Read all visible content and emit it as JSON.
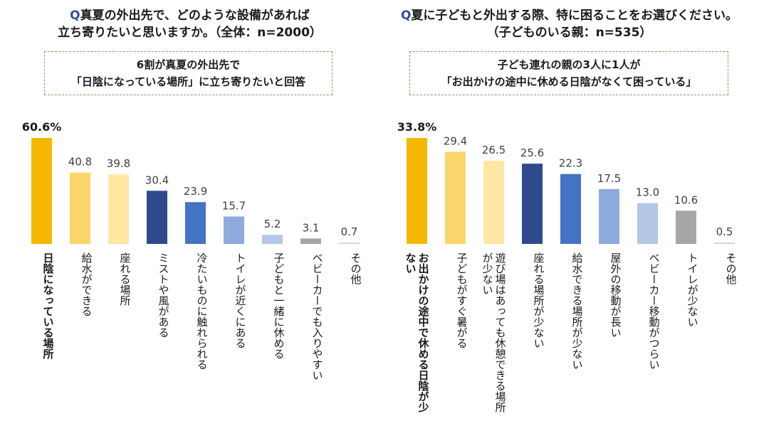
{
  "left": {
    "question_mark": "Q",
    "question_line1": "真夏の外出先で、どのような設備があれば",
    "question_line2": "立ち寄りたいと思いますか。（全体：n=2000）",
    "callout_line1": "6割が真夏の外出先で",
    "callout_line2": "「日陰になっている場所」に立ち寄りたいと回答"
  },
  "right": {
    "question_mark": "Q",
    "question_line1": "夏に子どもと外出する際、特に困ることをお選びください。",
    "question_line2": "（子どものいる親：n=535）",
    "callout_line1": "子ども連れの親の3人に1人が",
    "callout_line2": "「お出かけの途中に休める日陰がなくて困っている」"
  },
  "chart_data": [
    {
      "type": "bar",
      "categories": [
        "日陰になっている場所",
        "給水ができる",
        "座れる場所",
        "ミストや風がある",
        "冷たいものに触れられる",
        "トイレが近くにある",
        "子どもと一緒に休める",
        "ベビーカーでも入りやすい",
        "その他"
      ],
      "values": [
        60.6,
        40.8,
        39.8,
        30.4,
        23.9,
        15.7,
        5.2,
        3.1,
        0.7
      ],
      "value_labels": [
        "60.6%",
        "40.8",
        "39.8",
        "30.4",
        "23.9",
        "15.7",
        "5.2",
        "3.1",
        "0.7"
      ],
      "colors": [
        "#f5b800",
        "#fbd56a",
        "#fde7a3",
        "#2f4a8c",
        "#4472c4",
        "#8faadc",
        "#b4c7e7",
        "#a6a6a6",
        "#d9d9d9"
      ],
      "ylim": [
        0,
        60.6
      ]
    },
    {
      "type": "bar",
      "categories": [
        "お出かけの途中で休める日陰が少ない",
        "子どもがすぐ暑がる",
        "遊び場はあっても休憩できる場所が少ない",
        "座れる場所が少ない",
        "給水できる場所が少ない",
        "屋外の移動が長い",
        "ベビーカー移動がつらい",
        "トイレが少ない",
        "その他"
      ],
      "values": [
        33.8,
        29.4,
        26.5,
        25.6,
        22.3,
        17.5,
        13.0,
        10.6,
        0.5
      ],
      "value_labels": [
        "33.8%",
        "29.4",
        "26.5",
        "25.6",
        "22.3",
        "17.5",
        "13.0",
        "10.6",
        "0.5"
      ],
      "colors": [
        "#f5b800",
        "#fbd56a",
        "#fde7a3",
        "#2f4a8c",
        "#4472c4",
        "#8faadc",
        "#b4c7e7",
        "#a6a6a6",
        "#d9d9d9"
      ],
      "ylim": [
        0,
        33.8
      ]
    }
  ]
}
